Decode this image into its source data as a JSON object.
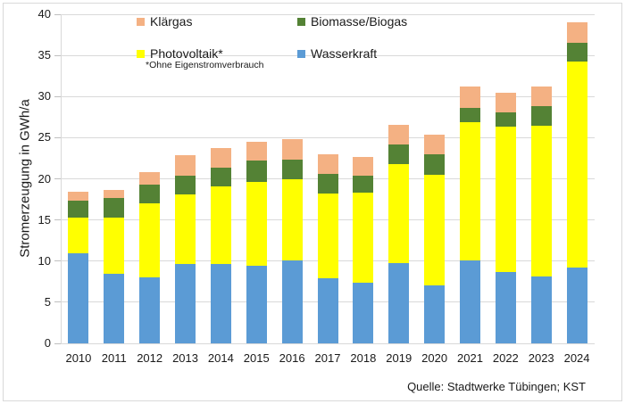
{
  "chart_data": {
    "type": "bar",
    "stacked": true,
    "title": "",
    "ylabel": "Stromerzeugung in GWh/a",
    "xlabel": "",
    "ylim": [
      0,
      40
    ],
    "ytick_step": 5,
    "grid": "horizontal",
    "gridline_color": "#d9d9d9",
    "legend_position": "top-left-inside",
    "categories": [
      "2010",
      "2011",
      "2012",
      "2013",
      "2014",
      "2015",
      "2016",
      "2017",
      "2018",
      "2019",
      "2020",
      "2021",
      "2022",
      "2023",
      "2024"
    ],
    "series": [
      {
        "name": "Wasserkraft",
        "color": "#5B9BD5",
        "values": [
          11.0,
          8.5,
          8.0,
          9.7,
          9.7,
          9.4,
          10.1,
          7.9,
          7.4,
          9.8,
          7.0,
          10.1,
          8.7,
          8.1,
          9.2
        ]
      },
      {
        "name": "Photovoltaik*",
        "color": "#FFFF00",
        "values": [
          4.3,
          6.8,
          9.0,
          8.4,
          9.4,
          10.2,
          9.8,
          10.3,
          10.9,
          12.0,
          13.5,
          16.8,
          17.6,
          18.3,
          25.1
        ]
      },
      {
        "name": "Biomasse/Biogas",
        "color": "#548235",
        "values": [
          2.0,
          2.4,
          2.3,
          2.3,
          2.3,
          2.6,
          2.4,
          2.4,
          2.1,
          2.4,
          2.5,
          1.7,
          1.8,
          2.4,
          2.2
        ]
      },
      {
        "name": "Klärgas",
        "color": "#F4B183",
        "values": [
          1.1,
          0.9,
          1.5,
          2.5,
          2.3,
          2.3,
          2.5,
          2.4,
          2.3,
          2.4,
          2.4,
          2.6,
          2.4,
          2.4,
          2.5
        ]
      }
    ],
    "legend": {
      "items": [
        {
          "label": "Klärgas",
          "color": "#F4B183"
        },
        {
          "label": "Biomasse/Biogas",
          "color": "#548235"
        },
        {
          "label": "Photovoltaik*",
          "color": "#FFFF00"
        },
        {
          "label": "Wasserkraft",
          "color": "#5B9BD5"
        }
      ]
    },
    "footnote": "*Ohne Eigenstromverbrauch",
    "source": "Quelle: Stadtwerke Tübingen; KST"
  }
}
